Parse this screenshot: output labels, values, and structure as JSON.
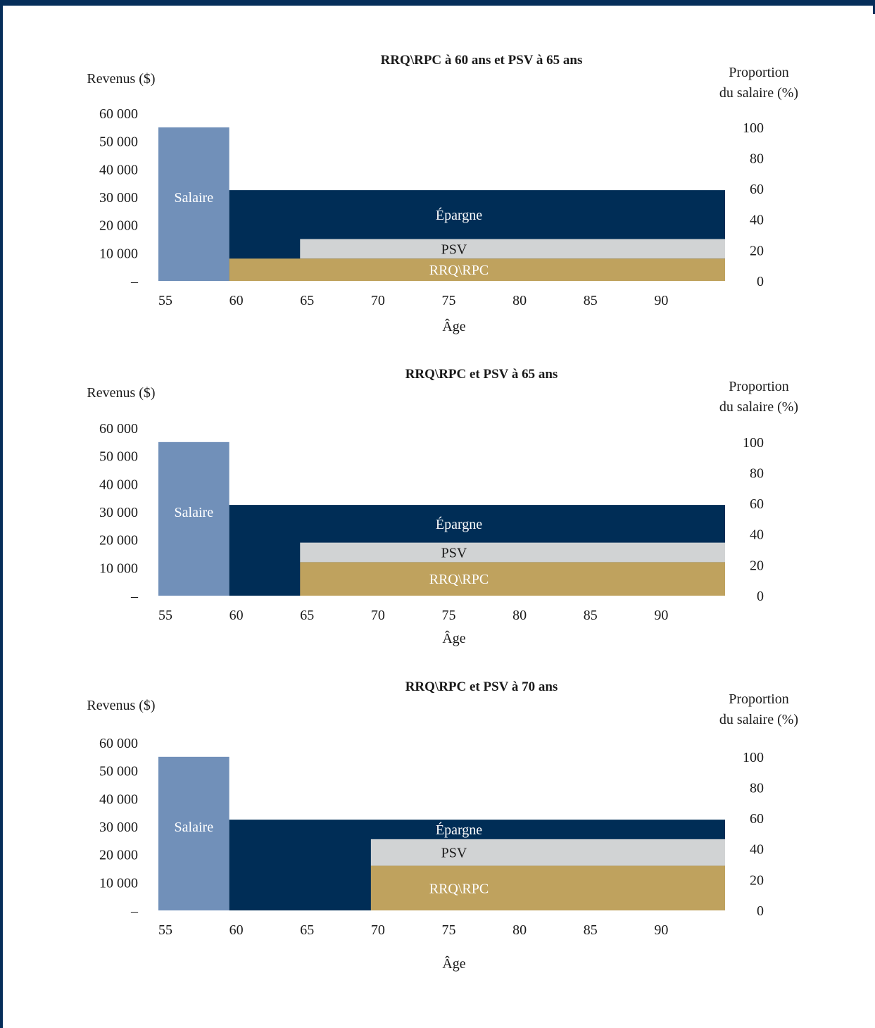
{
  "colors": {
    "salaire": "#7190b9",
    "epargne": "#002d56",
    "psv": "#d1d3d4",
    "rrq": "#bfa25e",
    "frame": "#062e5a"
  },
  "chart_data": [
    {
      "type": "bar",
      "title": "RRQ\\RPC à 60 ans et PSV à 65 ans",
      "ylabel": "Revenus ($)",
      "y2label_line1": "Proportion",
      "y2label_line2": "du salaire (%)",
      "xlabel": "Âge",
      "xticks": [
        "55",
        "60",
        "65",
        "70",
        "75",
        "80",
        "85",
        "90"
      ],
      "yticks": [
        "60 000",
        "50 000",
        "40 000",
        "30 000",
        "20 000",
        "10 000",
        "–"
      ],
      "y2ticks": [
        "100",
        "80",
        "60",
        "40",
        "20",
        "0"
      ],
      "ylim": [
        0,
        60000
      ],
      "y2lim": [
        0,
        100
      ],
      "xlim": [
        55,
        95
      ],
      "series": [
        {
          "name": "Salaire",
          "key": "salaire",
          "start_age": 55,
          "end_age": 60,
          "from": 0,
          "to": 55000
        },
        {
          "name": "Épargne",
          "key": "epargne",
          "start_age": 60,
          "end_age": 95,
          "from": 0,
          "to": 32500
        },
        {
          "name": "PSV",
          "key": "psv",
          "start_age": 65,
          "end_age": 95,
          "from": 8000,
          "to": 15000
        },
        {
          "name": "RRQ\\RPC",
          "key": "rrq",
          "start_age": 60,
          "end_age": 95,
          "from": 0,
          "to": 8000
        }
      ]
    },
    {
      "type": "bar",
      "title": "RRQ\\RPC et PSV à 65 ans",
      "ylabel": "Revenus ($)",
      "y2label_line1": "Proportion",
      "y2label_line2": "du salaire (%)",
      "xlabel": "Âge",
      "xticks": [
        "55",
        "60",
        "65",
        "70",
        "75",
        "80",
        "85",
        "90"
      ],
      "yticks": [
        "60 000",
        "50 000",
        "40 000",
        "30 000",
        "20 000",
        "10 000",
        "–"
      ],
      "y2ticks": [
        "100",
        "80",
        "60",
        "40",
        "20",
        "0"
      ],
      "ylim": [
        0,
        60000
      ],
      "y2lim": [
        0,
        100
      ],
      "xlim": [
        55,
        95
      ],
      "series": [
        {
          "name": "Salaire",
          "key": "salaire",
          "start_age": 55,
          "end_age": 60,
          "from": 0,
          "to": 55000
        },
        {
          "name": "Épargne",
          "key": "epargne",
          "start_age": 60,
          "end_age": 95,
          "from": 0,
          "to": 32500
        },
        {
          "name": "PSV",
          "key": "psv",
          "start_age": 65,
          "end_age": 95,
          "from": 12000,
          "to": 19000
        },
        {
          "name": "RRQ\\RPC",
          "key": "rrq",
          "start_age": 65,
          "end_age": 95,
          "from": 0,
          "to": 12000
        }
      ]
    },
    {
      "type": "bar",
      "title": "RRQ\\RPC et PSV à 70 ans",
      "ylabel": "Revenus ($)",
      "y2label_line1": "Proportion",
      "y2label_line2": "du salaire (%)",
      "xlabel": "Âge",
      "xticks": [
        "55",
        "60",
        "65",
        "70",
        "75",
        "80",
        "85",
        "90"
      ],
      "yticks": [
        "60 000",
        "50 000",
        "40 000",
        "30 000",
        "20 000",
        "10 000",
        "–"
      ],
      "y2ticks": [
        "100",
        "80",
        "60",
        "40",
        "20",
        "0"
      ],
      "ylim": [
        0,
        60000
      ],
      "y2lim": [
        0,
        100
      ],
      "xlim": [
        55,
        95
      ],
      "series": [
        {
          "name": "Salaire",
          "key": "salaire",
          "start_age": 55,
          "end_age": 60,
          "from": 0,
          "to": 55000
        },
        {
          "name": "Épargne",
          "key": "epargne",
          "start_age": 60,
          "end_age": 95,
          "from": 0,
          "to": 32500
        },
        {
          "name": "PSV",
          "key": "psv",
          "start_age": 70,
          "end_age": 95,
          "from": 16000,
          "to": 25500
        },
        {
          "name": "RRQ\\RPC",
          "key": "rrq",
          "start_age": 70,
          "end_age": 95,
          "from": 0,
          "to": 16000
        }
      ]
    }
  ]
}
